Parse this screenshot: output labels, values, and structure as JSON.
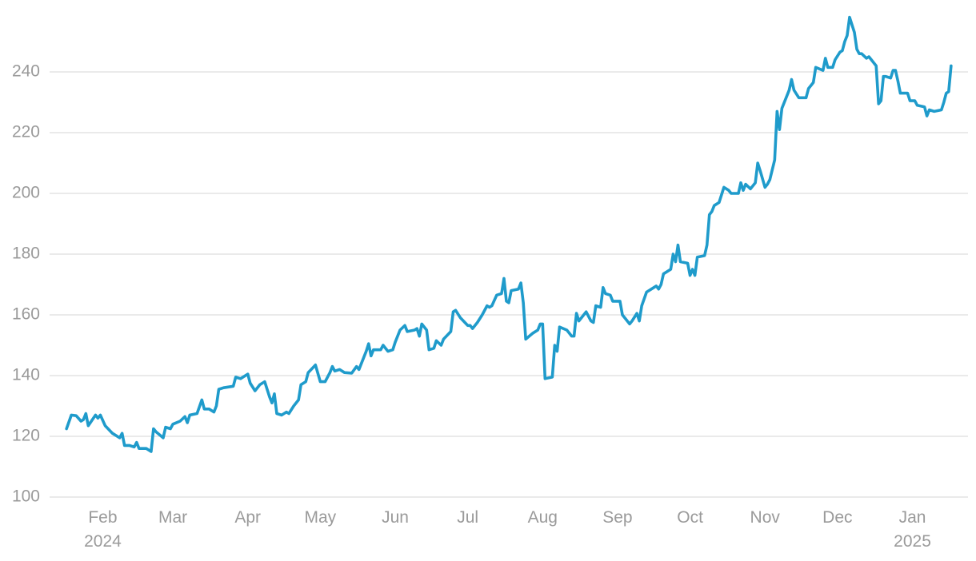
{
  "chart_data": {
    "type": "line",
    "x": [
      "2024-01-17",
      "2024-01-19",
      "2024-01-21",
      "2024-01-23",
      "2024-01-24",
      "2024-01-25",
      "2024-01-26",
      "2024-01-29",
      "2024-01-30",
      "2024-01-31",
      "2024-02-02",
      "2024-02-05",
      "2024-02-08",
      "2024-02-09",
      "2024-02-10",
      "2024-02-12",
      "2024-02-14",
      "2024-02-15",
      "2024-02-16",
      "2024-02-19",
      "2024-02-21",
      "2024-02-22",
      "2024-02-23",
      "2024-02-26",
      "2024-02-27",
      "2024-02-29",
      "2024-03-01",
      "2024-03-04",
      "2024-03-06",
      "2024-03-07",
      "2024-03-08",
      "2024-03-11",
      "2024-03-13",
      "2024-03-14",
      "2024-03-16",
      "2024-03-18",
      "2024-03-19",
      "2024-03-20",
      "2024-03-22",
      "2024-03-26",
      "2024-03-27",
      "2024-03-29",
      "2024-04-01",
      "2024-04-02",
      "2024-04-04",
      "2024-04-06",
      "2024-04-08",
      "2024-04-10",
      "2024-04-11",
      "2024-04-12",
      "2024-04-13",
      "2024-04-15",
      "2024-04-17",
      "2024-04-18",
      "2024-04-20",
      "2024-04-22",
      "2024-04-23",
      "2024-04-25",
      "2024-04-26",
      "2024-04-29",
      "2024-05-01",
      "2024-05-03",
      "2024-05-05",
      "2024-05-06",
      "2024-05-07",
      "2024-05-09",
      "2024-05-11",
      "2024-05-14",
      "2024-05-16",
      "2024-05-17",
      "2024-05-19",
      "2024-05-20",
      "2024-05-21",
      "2024-05-22",
      "2024-05-23",
      "2024-05-26",
      "2024-05-27",
      "2024-05-29",
      "2024-05-31",
      "2024-06-01",
      "2024-06-03",
      "2024-06-05",
      "2024-06-06",
      "2024-06-09",
      "2024-06-10",
      "2024-06-11",
      "2024-06-12",
      "2024-06-14",
      "2024-06-15",
      "2024-06-17",
      "2024-06-18",
      "2024-06-20",
      "2024-06-21",
      "2024-06-24",
      "2024-06-25",
      "2024-06-26",
      "2024-06-28",
      "2024-07-01",
      "2024-07-02",
      "2024-07-03",
      "2024-07-05",
      "2024-07-07",
      "2024-07-09",
      "2024-07-10",
      "2024-07-11",
      "2024-07-13",
      "2024-07-15",
      "2024-07-16",
      "2024-07-17",
      "2024-07-18",
      "2024-07-19",
      "2024-07-22",
      "2024-07-23",
      "2024-07-24",
      "2024-07-25",
      "2024-07-28",
      "2024-07-30",
      "2024-07-31",
      "2024-08-01",
      "2024-08-02",
      "2024-08-05",
      "2024-08-06",
      "2024-08-07",
      "2024-08-08",
      "2024-08-11",
      "2024-08-12",
      "2024-08-13",
      "2024-08-14",
      "2024-08-15",
      "2024-08-16",
      "2024-08-19",
      "2024-08-21",
      "2024-08-22",
      "2024-08-23",
      "2024-08-25",
      "2024-08-26",
      "2024-08-27",
      "2024-08-29",
      "2024-08-30",
      "2024-09-02",
      "2024-09-03",
      "2024-09-06",
      "2024-09-07",
      "2024-09-09",
      "2024-09-10",
      "2024-09-11",
      "2024-09-13",
      "2024-09-16",
      "2024-09-17",
      "2024-09-18",
      "2024-09-19",
      "2024-09-20",
      "2024-09-23",
      "2024-09-24",
      "2024-09-25",
      "2024-09-26",
      "2024-09-27",
      "2024-09-30",
      "2024-10-01",
      "2024-10-02",
      "2024-10-03",
      "2024-10-04",
      "2024-10-07",
      "2024-10-08",
      "2024-10-09",
      "2024-10-10",
      "2024-10-11",
      "2024-10-13",
      "2024-10-15",
      "2024-10-17",
      "2024-10-18",
      "2024-10-21",
      "2024-10-22",
      "2024-10-23",
      "2024-10-24",
      "2024-10-26",
      "2024-10-28",
      "2024-10-29",
      "2024-10-30",
      "2024-11-01",
      "2024-11-02",
      "2024-11-03",
      "2024-11-05",
      "2024-11-06",
      "2024-11-07",
      "2024-11-08",
      "2024-11-11",
      "2024-11-12",
      "2024-11-13",
      "2024-11-15",
      "2024-11-18",
      "2024-11-19",
      "2024-11-21",
      "2024-11-22",
      "2024-11-25",
      "2024-11-26",
      "2024-11-27",
      "2024-11-29",
      "2024-11-30",
      "2024-12-02",
      "2024-12-03",
      "2024-12-04",
      "2024-12-05",
      "2024-12-06",
      "2024-12-08",
      "2024-12-09",
      "2024-12-10",
      "2024-12-11",
      "2024-12-13",
      "2024-12-14",
      "2024-12-15",
      "2024-12-17",
      "2024-12-18",
      "2024-12-19",
      "2024-12-20",
      "2024-12-21",
      "2024-12-23",
      "2024-12-24",
      "2024-12-25",
      "2024-12-26",
      "2024-12-27",
      "2024-12-30",
      "2024-12-31",
      "2025-01-02",
      "2025-01-03",
      "2025-01-06",
      "2025-01-07",
      "2025-01-08",
      "2025-01-10",
      "2025-01-13",
      "2025-01-14",
      "2025-01-15",
      "2025-01-16",
      "2025-01-17"
    ],
    "series": [
      {
        "color": "#1f9bcb",
        "values": [
          122.5,
          127,
          126.8,
          125,
          125.5,
          127.5,
          123.5,
          127,
          126,
          127,
          123.5,
          121,
          119.5,
          121,
          117,
          117,
          116.5,
          118,
          116,
          116,
          115,
          122.5,
          121.5,
          119.5,
          123,
          122.5,
          124,
          125,
          126.5,
          124.5,
          127,
          127.5,
          132,
          129,
          129,
          128,
          130,
          135.5,
          136,
          136.5,
          139.5,
          139,
          140.5,
          137.5,
          135,
          137,
          138,
          133,
          131,
          134,
          127.5,
          127,
          128,
          127.5,
          130,
          132,
          137,
          138,
          141,
          143.5,
          138,
          138,
          141,
          143,
          141.5,
          142,
          141,
          140.8,
          143,
          142,
          146,
          148,
          150.5,
          146.5,
          148.5,
          148.5,
          150,
          148,
          148.5,
          151,
          155,
          156.5,
          154.5,
          155,
          155.5,
          153,
          157,
          155,
          148.5,
          149,
          151.5,
          150,
          152,
          154.5,
          161,
          161.5,
          159,
          156.5,
          156.5,
          155.5,
          157.5,
          160,
          163,
          162.5,
          163,
          166.5,
          167,
          172,
          164.5,
          164,
          168,
          168.5,
          170.5,
          164,
          152,
          154,
          155,
          157,
          157,
          139,
          139.5,
          150,
          148,
          156,
          155,
          154,
          153,
          153,
          160.5,
          158,
          161,
          158,
          157.5,
          163,
          162.5,
          169,
          167,
          166.5,
          164.5,
          164.5,
          160,
          157,
          158,
          160.5,
          158,
          163,
          167.5,
          169,
          169.5,
          168.5,
          170,
          173.5,
          175,
          180,
          177.5,
          183,
          177.5,
          177,
          173,
          175,
          173,
          179,
          179.5,
          183,
          193,
          194,
          196,
          197,
          202,
          201,
          200,
          200,
          203.5,
          201,
          203,
          201.5,
          203.5,
          210,
          207.5,
          202,
          203,
          204.5,
          211,
          227,
          221,
          228,
          234,
          237.5,
          234,
          231.5,
          231.5,
          234.5,
          236.5,
          241.5,
          240.5,
          244.5,
          241.5,
          241.5,
          244,
          246.5,
          247,
          250,
          252,
          258,
          253,
          247.5,
          246,
          246,
          244.5,
          245,
          244,
          242,
          229.5,
          230.5,
          238.5,
          238.5,
          238,
          240.5,
          240.5,
          237,
          233,
          233,
          230.5,
          230.5,
          229,
          228.5,
          225.5,
          227.5,
          227,
          227.5,
          230,
          233,
          233.5,
          242
        ]
      }
    ],
    "xlim": [
      "2024-01-10",
      "2025-01-24"
    ],
    "xticks": [
      {
        "value": "2024-02-01",
        "label": "Feb\n2024"
      },
      {
        "value": "2024-03-01",
        "label": "Mar"
      },
      {
        "value": "2024-04-01",
        "label": "Apr"
      },
      {
        "value": "2024-05-01",
        "label": "May"
      },
      {
        "value": "2024-06-01",
        "label": "Jun"
      },
      {
        "value": "2024-07-01",
        "label": "Jul"
      },
      {
        "value": "2024-08-01",
        "label": "Aug"
      },
      {
        "value": "2024-09-01",
        "label": "Sep"
      },
      {
        "value": "2024-10-01",
        "label": "Oct"
      },
      {
        "value": "2024-11-01",
        "label": "Nov"
      },
      {
        "value": "2024-12-01",
        "label": "Dec"
      },
      {
        "value": "2025-01-01",
        "label": "Jan\n2025"
      }
    ],
    "ylim": [
      100,
      260
    ],
    "yticks": [
      100,
      120,
      140,
      160,
      180,
      200,
      220,
      240
    ],
    "grid": true
  }
}
